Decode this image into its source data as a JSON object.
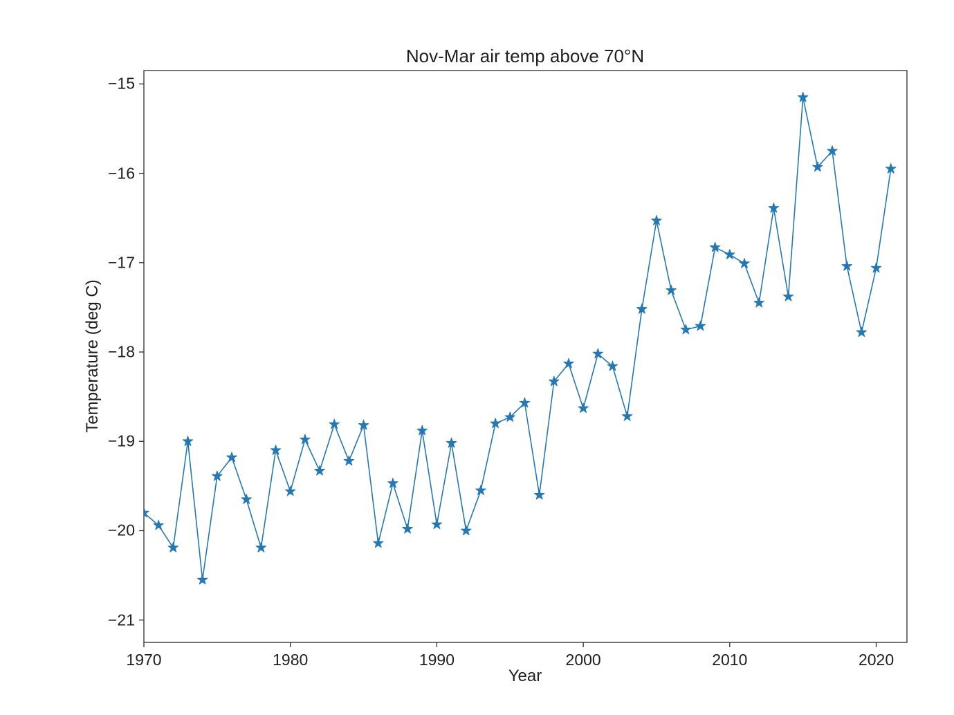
{
  "chart_data": {
    "type": "line",
    "title": "Nov-Mar air temp above 70°N",
    "xlabel": "Year",
    "ylabel": "Temperature (deg C)",
    "x": [
      1970,
      1971,
      1972,
      1973,
      1974,
      1975,
      1976,
      1977,
      1978,
      1979,
      1980,
      1981,
      1982,
      1983,
      1984,
      1985,
      1986,
      1987,
      1988,
      1989,
      1990,
      1991,
      1992,
      1993,
      1994,
      1995,
      1996,
      1997,
      1998,
      1999,
      2000,
      2001,
      2002,
      2003,
      2004,
      2005,
      2006,
      2007,
      2008,
      2009,
      2010,
      2011,
      2012,
      2013,
      2014,
      2015,
      2016,
      2017,
      2018,
      2019,
      2020,
      2021
    ],
    "values": [
      -19.8,
      -19.94,
      -20.19,
      -19.0,
      -20.55,
      -19.39,
      -19.18,
      -19.65,
      -20.19,
      -19.1,
      -19.56,
      -18.98,
      -19.33,
      -18.81,
      -19.22,
      -18.82,
      -20.14,
      -19.47,
      -19.98,
      -18.88,
      -19.93,
      -19.02,
      -20.0,
      -19.55,
      -18.8,
      -18.73,
      -18.57,
      -19.6,
      -18.33,
      -18.13,
      -18.63,
      -18.02,
      -18.16,
      -18.72,
      -17.52,
      -16.53,
      -17.31,
      -17.75,
      -17.71,
      -16.83,
      -16.91,
      -17.01,
      -17.45,
      -16.39,
      -17.38,
      -15.15,
      -15.93,
      -15.75,
      -17.04,
      -17.78,
      -17.06,
      -15.95
    ],
    "xlim": [
      1970,
      2022.1
    ],
    "ylim": [
      -21.25,
      -14.85
    ],
    "xticks": [
      1970,
      1980,
      1990,
      2000,
      2010,
      2020
    ],
    "xtick_labels": [
      "1970",
      "1980",
      "1990",
      "2000",
      "2010",
      "2020"
    ],
    "yticks": [
      -15,
      -16,
      -17,
      -18,
      -19,
      -20,
      -21
    ],
    "ytick_labels": [
      "−15",
      "−16",
      "−17",
      "−18",
      "−19",
      "−20",
      "−21"
    ],
    "line_color": "#2478b4",
    "axis_color": "#2b2b2b",
    "marker": "star",
    "grid": false,
    "legend_position": "none"
  }
}
